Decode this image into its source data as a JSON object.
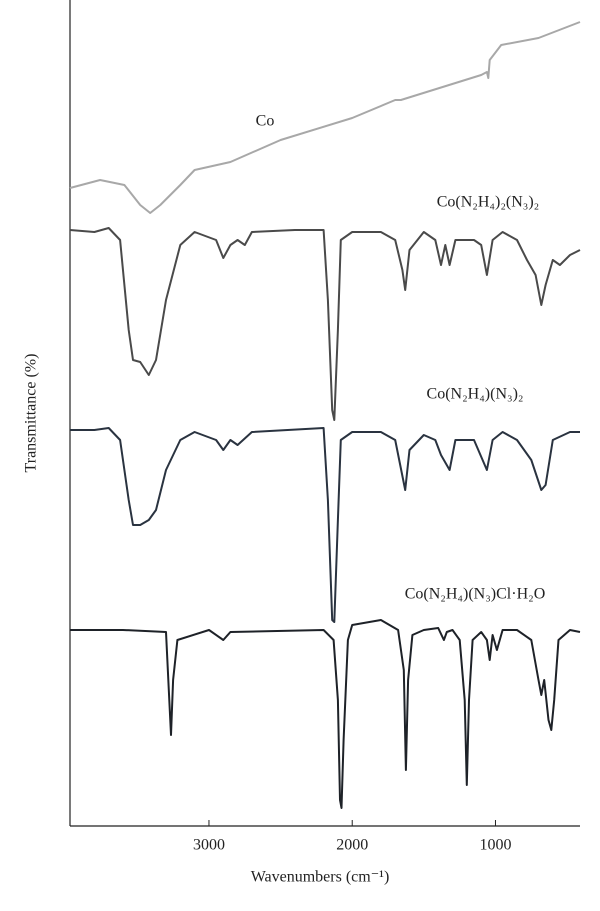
{
  "chart_data": {
    "type": "line",
    "xlabel": "Wavenumbers (cm⁻¹)",
    "ylabel": "Transmittance (%)",
    "xlim": [
      3970,
      410
    ],
    "ylim": [
      0,
      82.6
    ],
    "xticks": [
      3000,
      2000,
      1000
    ],
    "series": [
      {
        "name": "Co",
        "color": "#a8a8a8",
        "x": [
          3970,
          3760,
          3590,
          3480,
          3410,
          3340,
          3200,
          3100,
          2850,
          2500,
          2000,
          1700,
          1660,
          1100,
          1060,
          1050,
          1040,
          960,
          700,
          410
        ],
        "values": [
          63.8,
          64.6,
          64.1,
          62.1,
          61.3,
          62.1,
          64.1,
          65.6,
          66.4,
          68.6,
          70.8,
          72.6,
          72.6,
          75.1,
          75.4,
          74.8,
          76.6,
          78.1,
          78.8,
          80.4
        ]
      },
      {
        "name": "Co(N₂H₄)₂(N₃)₂",
        "color": "#4a4a4a",
        "x": [
          3970,
          3800,
          3700,
          3620,
          3560,
          3530,
          3480,
          3420,
          3370,
          3300,
          3200,
          3100,
          2950,
          2900,
          2850,
          2800,
          2750,
          2700,
          2400,
          2200,
          2170,
          2140,
          2125,
          2100,
          2080,
          2000,
          1800,
          1700,
          1650,
          1630,
          1600,
          1500,
          1420,
          1380,
          1350,
          1320,
          1280,
          1150,
          1100,
          1060,
          1020,
          950,
          850,
          780,
          720,
          680,
          650,
          600,
          550,
          480,
          410
        ],
        "values": [
          59.6,
          59.4,
          59.8,
          58.6,
          49.6,
          46.6,
          46.4,
          45.1,
          46.6,
          52.6,
          58.1,
          59.4,
          58.6,
          56.8,
          58.1,
          58.6,
          58.1,
          59.4,
          59.6,
          59.6,
          52.6,
          41.6,
          40.6,
          49.6,
          58.6,
          59.4,
          59.4,
          58.6,
          55.6,
          53.6,
          57.6,
          59.4,
          58.6,
          56.1,
          58.1,
          56.1,
          58.6,
          58.6,
          58.1,
          55.1,
          58.6,
          59.4,
          58.6,
          56.6,
          55.1,
          52.1,
          54.1,
          56.6,
          56.1,
          57.1,
          57.6
        ]
      },
      {
        "name": "Co(N₂H₄)(N₃)₂",
        "color": "#2a3340",
        "x": [
          3970,
          3800,
          3700,
          3620,
          3560,
          3530,
          3480,
          3420,
          3370,
          3300,
          3200,
          3100,
          2950,
          2900,
          2850,
          2800,
          2700,
          2200,
          2170,
          2140,
          2125,
          2100,
          2080,
          2000,
          1800,
          1700,
          1630,
          1600,
          1500,
          1420,
          1380,
          1320,
          1280,
          1150,
          1060,
          1020,
          950,
          850,
          750,
          680,
          650,
          600,
          480,
          410
        ],
        "values": [
          39.6,
          39.6,
          39.8,
          38.6,
          32.6,
          30.1,
          30.1,
          30.6,
          31.6,
          35.6,
          38.6,
          39.4,
          38.6,
          37.6,
          38.6,
          38.1,
          39.4,
          39.8,
          32.6,
          20.6,
          20.4,
          30.6,
          38.6,
          39.4,
          39.4,
          38.6,
          33.6,
          37.6,
          39.1,
          38.6,
          37.1,
          35.6,
          38.6,
          38.6,
          35.6,
          38.6,
          39.4,
          38.6,
          36.6,
          33.6,
          34.1,
          38.6,
          39.4,
          39.4
        ]
      },
      {
        "name": "Co(N₂H₄)(N₃)Cl·H₂O",
        "color": "#1e2228",
        "x": [
          3970,
          3600,
          3300,
          3280,
          3265,
          3250,
          3220,
          3000,
          2900,
          2850,
          2200,
          2130,
          2100,
          2085,
          2075,
          2060,
          2030,
          2000,
          1800,
          1680,
          1640,
          1625,
          1610,
          1580,
          1500,
          1400,
          1360,
          1340,
          1300,
          1250,
          1215,
          1200,
          1185,
          1160,
          1100,
          1060,
          1040,
          1020,
          990,
          950,
          850,
          750,
          700,
          680,
          660,
          630,
          610,
          590,
          560,
          480,
          410
        ],
        "values": [
          19.6,
          19.6,
          19.4,
          13.6,
          9.1,
          14.6,
          18.6,
          19.6,
          18.6,
          19.4,
          19.6,
          18.6,
          12.6,
          2.6,
          1.8,
          8.6,
          18.6,
          20.1,
          20.6,
          19.6,
          15.6,
          5.6,
          14.6,
          19.1,
          19.6,
          19.8,
          18.6,
          19.4,
          19.6,
          18.6,
          12.6,
          4.1,
          12.6,
          18.6,
          19.4,
          18.6,
          16.6,
          19.1,
          17.6,
          19.6,
          19.6,
          18.6,
          14.6,
          13.1,
          14.6,
          10.6,
          9.6,
          12.6,
          18.6,
          19.6,
          19.4
        ]
      }
    ]
  }
}
